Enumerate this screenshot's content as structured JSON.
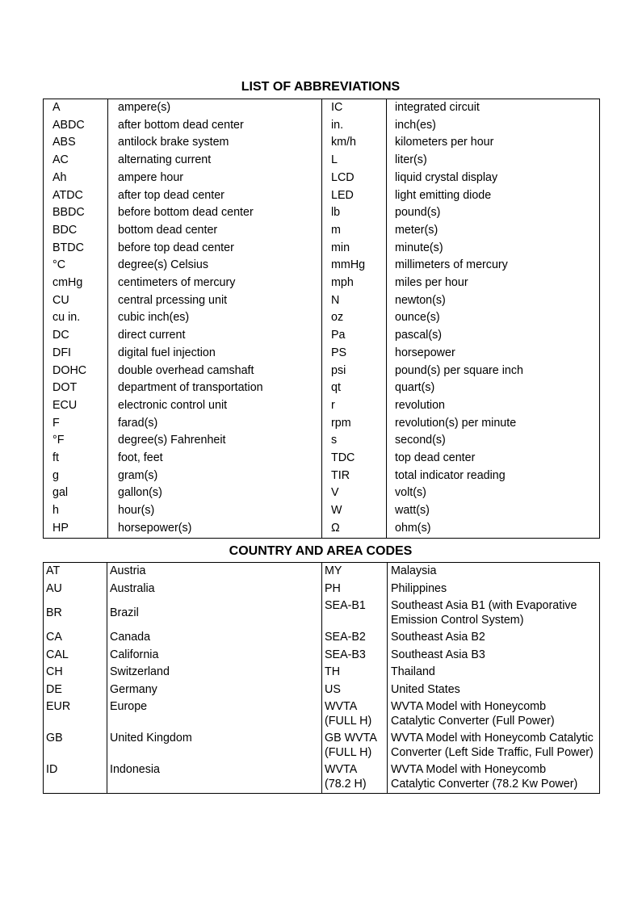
{
  "abbreviations": {
    "title": "LIST OF ABBREVIATIONS",
    "rows": [
      [
        "A",
        "ampere(s)",
        "IC",
        "integrated circuit"
      ],
      [
        "ABDC",
        "after bottom dead center",
        "in.",
        "inch(es)"
      ],
      [
        "ABS",
        "antilock brake system",
        "km/h",
        "kilometers per hour"
      ],
      [
        "AC",
        "alternating current",
        "L",
        "liter(s)"
      ],
      [
        "Ah",
        "ampere hour",
        "LCD",
        "liquid crystal display"
      ],
      [
        "ATDC",
        "after top dead center",
        "LED",
        "light emitting diode"
      ],
      [
        "BBDC",
        "before bottom dead center",
        "lb",
        "pound(s)"
      ],
      [
        "BDC",
        "bottom dead center",
        "m",
        "meter(s)"
      ],
      [
        "BTDC",
        "before top dead center",
        "min",
        "minute(s)"
      ],
      [
        "°C",
        "degree(s) Celsius",
        "mmHg",
        "millimeters of mercury"
      ],
      [
        "cmHg",
        "centimeters of mercury",
        "mph",
        "miles per hour"
      ],
      [
        "CU",
        "central prcessing unit",
        "N",
        "newton(s)"
      ],
      [
        "cu in.",
        "cubic inch(es)",
        "oz",
        "ounce(s)"
      ],
      [
        "DC",
        "direct current",
        "Pa",
        "pascal(s)"
      ],
      [
        "DFI",
        "digital fuel injection",
        "PS",
        "horsepower"
      ],
      [
        "DOHC",
        "double overhead camshaft",
        "psi",
        "pound(s) per square inch"
      ],
      [
        "DOT",
        "department of transportation",
        "qt",
        "quart(s)"
      ],
      [
        "ECU",
        "electronic control unit",
        "r",
        "revolution"
      ],
      [
        "F",
        "farad(s)",
        "rpm",
        "revolution(s) per minute"
      ],
      [
        "°F",
        "degree(s) Fahrenheit",
        "s",
        "second(s)"
      ],
      [
        "ft",
        "foot, feet",
        "TDC",
        "top dead center"
      ],
      [
        "g",
        "gram(s)",
        "TIR",
        "total indicator reading"
      ],
      [
        "gal",
        "gallon(s)",
        "V",
        "volt(s)"
      ],
      [
        "h",
        "hour(s)",
        "W",
        "watt(s)"
      ],
      [
        "HP",
        "horsepower(s)",
        "Ω",
        "ohm(s)"
      ]
    ]
  },
  "country_codes": {
    "title": "COUNTRY AND AREA CODES",
    "rows": [
      [
        "AT",
        "Austria",
        "MY",
        "Malaysia"
      ],
      [
        "AU",
        "Australia",
        "PH",
        "Philippines"
      ],
      [
        "BR",
        "Brazil",
        "SEA-B1",
        "Southeast Asia B1 (with Evaporative\nEmission Control System)"
      ],
      [
        "CA",
        "Canada",
        "SEA-B2",
        "Southeast Asia B2"
      ],
      [
        "CAL",
        "California",
        "SEA-B3",
        "Southeast Asia B3"
      ],
      [
        "CH",
        "Switzerland",
        "TH",
        "Thailand"
      ],
      [
        "DE",
        "Germany",
        "US",
        "United States"
      ],
      [
        "EUR",
        "Europe",
        "WVTA\n(FULL H)",
        "WVTA Model with Honeycomb\nCatalytic Converter (Full Power)"
      ],
      [
        "GB",
        "United Kingdom",
        "GB WVTA\n(FULL H)",
        "WVTA Model with Honeycomb Catalytic\nConverter (Left Side Traffic, Full Power)"
      ],
      [
        "ID",
        "Indonesia",
        "WVTA\n(78.2 H)",
        "WVTA Model with Honeycomb\nCatalytic Converter (78.2 Kw Power)"
      ]
    ]
  }
}
